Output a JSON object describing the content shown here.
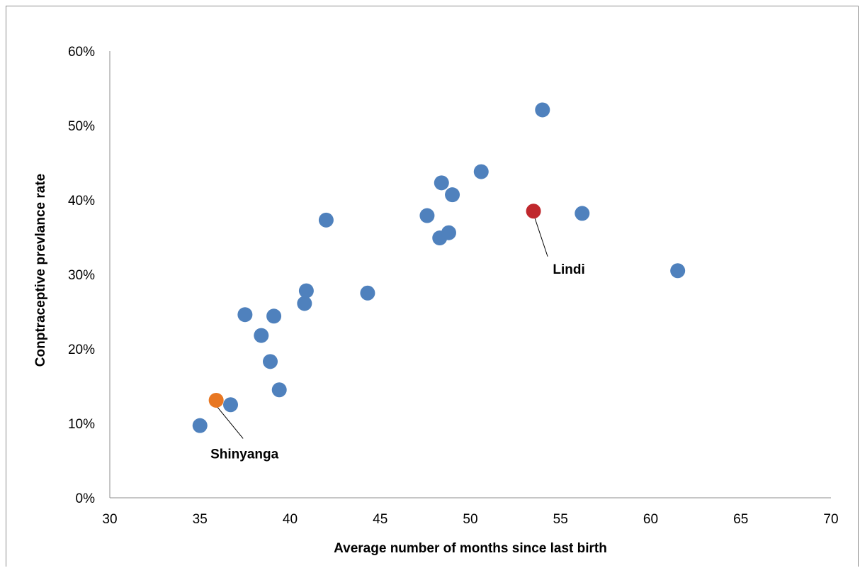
{
  "chart_data": {
    "type": "scatter",
    "xlabel": "Average number of months since last birth",
    "ylabel": "Conptraceptive prevlance rate",
    "xlim": [
      30,
      70
    ],
    "ylim": [
      0,
      0.6
    ],
    "xticks": [
      30,
      35,
      40,
      45,
      50,
      55,
      60,
      65,
      70
    ],
    "yticks": [
      0,
      0.1,
      0.2,
      0.3,
      0.4,
      0.5,
      0.6
    ],
    "ytick_labels": [
      "0%",
      "10%",
      "20%",
      "30%",
      "40%",
      "50%",
      "60%"
    ],
    "xtick_labels": [
      "30",
      "35",
      "40",
      "45",
      "50",
      "55",
      "60",
      "65",
      "70"
    ],
    "grid": false,
    "colors": {
      "default": "#4f81bd",
      "shinyanga": "#e87722",
      "lindi": "#c0282d"
    },
    "points": [
      {
        "x": 35.0,
        "y": 0.097
      },
      {
        "x": 36.7,
        "y": 0.125
      },
      {
        "x": 37.5,
        "y": 0.246
      },
      {
        "x": 38.4,
        "y": 0.218
      },
      {
        "x": 38.9,
        "y": 0.183
      },
      {
        "x": 39.1,
        "y": 0.244
      },
      {
        "x": 39.4,
        "y": 0.145
      },
      {
        "x": 40.8,
        "y": 0.261
      },
      {
        "x": 40.9,
        "y": 0.278
      },
      {
        "x": 42.0,
        "y": 0.373
      },
      {
        "x": 44.3,
        "y": 0.275
      },
      {
        "x": 47.6,
        "y": 0.379
      },
      {
        "x": 48.3,
        "y": 0.349
      },
      {
        "x": 48.4,
        "y": 0.423
      },
      {
        "x": 48.8,
        "y": 0.356
      },
      {
        "x": 49.0,
        "y": 0.407
      },
      {
        "x": 50.6,
        "y": 0.438
      },
      {
        "x": 54.0,
        "y": 0.521
      },
      {
        "x": 56.2,
        "y": 0.382
      },
      {
        "x": 61.5,
        "y": 0.305
      }
    ],
    "highlighted": [
      {
        "label": "Shinyanga",
        "x": 35.9,
        "y": 0.131,
        "color_key": "shinyanga"
      },
      {
        "label": "Lindi",
        "x": 53.5,
        "y": 0.385,
        "color_key": "lindi"
      }
    ]
  }
}
